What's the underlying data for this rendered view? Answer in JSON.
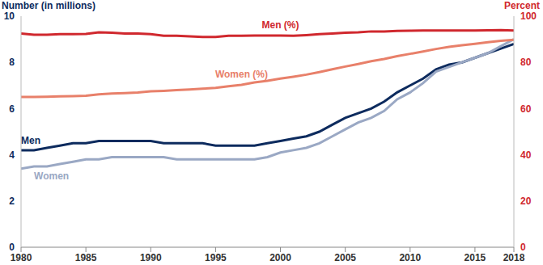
{
  "chart_data": {
    "type": "line",
    "y_label": "Number (in millions)",
    "y2_label": "Percent",
    "x": [
      1980,
      1981,
      1982,
      1983,
      1984,
      1985,
      1986,
      1987,
      1988,
      1989,
      1990,
      1991,
      1992,
      1993,
      1994,
      1995,
      1996,
      1997,
      1998,
      1999,
      2000,
      2001,
      2002,
      2003,
      2004,
      2005,
      2006,
      2007,
      2008,
      2009,
      2010,
      2011,
      2012,
      2013,
      2014,
      2015,
      2016,
      2017,
      2018
    ],
    "xlim": [
      1980,
      2018
    ],
    "xticks": [
      1980,
      1985,
      1990,
      1995,
      2000,
      2005,
      2010,
      2015,
      2018
    ],
    "ylim": [
      0,
      10
    ],
    "yticks": [
      0,
      2,
      4,
      6,
      8,
      10
    ],
    "y2lim": [
      0,
      100
    ],
    "y2ticks": [
      0,
      20,
      40,
      60,
      80,
      100
    ],
    "grid": false,
    "series": [
      {
        "name": "Men",
        "color": "#0d2b5e",
        "values": [
          4.2,
          4.2,
          4.3,
          4.4,
          4.5,
          4.5,
          4.6,
          4.6,
          4.6,
          4.6,
          4.6,
          4.5,
          4.5,
          4.5,
          4.5,
          4.4,
          4.4,
          4.4,
          4.4,
          4.5,
          4.6,
          4.7,
          4.8,
          5.0,
          5.3,
          5.6,
          5.8,
          6.0,
          6.3,
          6.7,
          7.0,
          7.3,
          7.7,
          7.9,
          8.0,
          8.2,
          8.4,
          8.6,
          8.8
        ]
      },
      {
        "name": "Women",
        "color": "#9aa8c4",
        "values": [
          3.4,
          3.5,
          3.5,
          3.6,
          3.7,
          3.8,
          3.8,
          3.9,
          3.9,
          3.9,
          3.9,
          3.9,
          3.8,
          3.8,
          3.8,
          3.8,
          3.8,
          3.8,
          3.8,
          3.9,
          4.1,
          4.2,
          4.3,
          4.5,
          4.8,
          5.1,
          5.4,
          5.6,
          5.9,
          6.4,
          6.7,
          7.1,
          7.6,
          7.8,
          8.0,
          8.2,
          8.4,
          8.7,
          9.0
        ]
      },
      {
        "name": "Men (%)",
        "color": "#d0282e",
        "axis": "y2",
        "values": [
          92.5,
          92,
          92,
          92.2,
          92.2,
          92.3,
          93,
          92.8,
          92.5,
          92.5,
          92.2,
          91.5,
          91.5,
          91.3,
          91,
          91,
          91.5,
          91.5,
          91.6,
          91.6,
          91.6,
          91.5,
          91.8,
          92.2,
          92.5,
          92.8,
          93,
          93.4,
          93.4,
          93.6,
          93.7,
          93.8,
          93.8,
          93.8,
          93.8,
          93.8,
          93.9,
          94,
          93.8
        ]
      },
      {
        "name": "Women (%)",
        "color": "#e8806a",
        "axis": "y2",
        "values": [
          65,
          65,
          65.1,
          65.3,
          65.4,
          65.6,
          66.2,
          66.5,
          66.7,
          67,
          67.5,
          67.7,
          68,
          68.3,
          68.6,
          69,
          69.7,
          70.3,
          71.3,
          72,
          73,
          73.8,
          74.7,
          75.8,
          77,
          78.2,
          79.3,
          80.5,
          81.5,
          82.7,
          83.7,
          84.7,
          85.8,
          86.7,
          87.4,
          88,
          88.7,
          89.3,
          89.8
        ]
      }
    ]
  }
}
